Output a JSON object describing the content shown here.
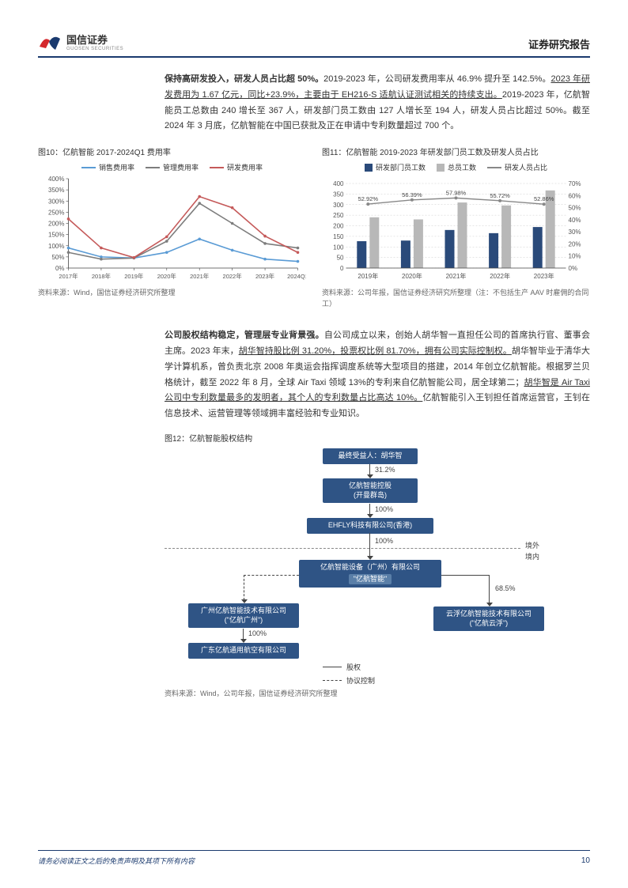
{
  "header": {
    "company": "国信证券",
    "company_en": "GUOSEN SECURITIES",
    "report_title": "证券研究报告",
    "logo_red": "#d4282d",
    "logo_blue": "#1a3a6e"
  },
  "para1": {
    "bold": "保持高研发投入，研发人员占比超 50%。",
    "t1": "2019-2023 年，公司研发费用率从 46.9% 提升至 142.5%。",
    "ul1": "2023 年研发费用为 1.67 亿元，同比+23.9%，主要由于 EH216-S 适航认证测试相关的持续支出。",
    "t2": "2019-2023 年，亿航智能员工总数由 240 增长至 367 人，研发部门员工数由 127 人增长至 194 人，研发人员占比超过 50%。截至 2024 年 3 月底，亿航智能在中国已获批及正在申请中专利数量超过 700 个。"
  },
  "chart10": {
    "title": "图10：亿航智能 2017-2024Q1 费用率",
    "source": "资料来源：Wind，国信证券经济研究所整理",
    "legend": [
      "销售费用率",
      "管理费用率",
      "研发费用率"
    ],
    "colors": [
      "#5a9bd5",
      "#7d7d7d",
      "#c55a5a"
    ],
    "x_labels": [
      "2017年",
      "2018年",
      "2019年",
      "2020年",
      "2021年",
      "2022年",
      "2023年",
      "2024Q1"
    ],
    "y_ticks": [
      0,
      50,
      100,
      150,
      200,
      250,
      300,
      350,
      400
    ],
    "sales": [
      90,
      50,
      45,
      70,
      130,
      80,
      40,
      30
    ],
    "mgmt": [
      70,
      40,
      45,
      120,
      290,
      200,
      110,
      90
    ],
    "rd": [
      220,
      90,
      47,
      140,
      320,
      270,
      143,
      70
    ]
  },
  "chart11": {
    "title": "图11：亿航智能 2019-2023 年研发部门员工数及研发人员占比",
    "source": "资料来源：公司年报，国信证券经济研究所整理（注：不包括生产 AAV 时雇佣的合同工）",
    "legend": [
      "研发部门员工数",
      "总员工数",
      "研发人员占比"
    ],
    "colors": [
      "#2a4a7a",
      "#b8b8b8",
      "#888888"
    ],
    "x_labels": [
      "2019年",
      "2020年",
      "2021年",
      "2022年",
      "2023年"
    ],
    "y1_ticks": [
      0,
      50,
      100,
      150,
      200,
      250,
      300,
      350,
      400
    ],
    "y2_ticks": [
      0,
      10,
      20,
      30,
      40,
      50,
      60,
      70
    ],
    "rd_emp": [
      127,
      130,
      180,
      165,
      194
    ],
    "total_emp": [
      240,
      230,
      310,
      296,
      367
    ],
    "ratio": [
      52.92,
      56.39,
      57.98,
      55.72,
      52.86
    ],
    "ratio_labels": [
      "52.92%",
      "56.39%",
      "57.98%",
      "55.72%",
      "52.86%"
    ]
  },
  "para2": {
    "bold": "公司股权结构稳定，管理层专业背景强。",
    "t1": "自公司成立以来，创始人胡华智一直担任公司的首席执行官、董事会主席。2023 年末，",
    "ul1": "胡华智持股比例 31.20%，投票权比例 81.70%，拥有公司实际控制权。",
    "t2": "胡华智毕业于清华大学计算机系，曾负责北京 2008 年奥运会指挥调度系统等大型项目的搭建，2014 年创立亿航智能。根据罗兰贝格统计，截至 2022 年 8 月，全球 Air Taxi 领域 13%的专利来自亿航智能公司，居全球第二；",
    "ul2": "胡华智是 Air Taxi 公司中专利数量最多的发明者，其个人的专利数量占比高达 10%。",
    "t3": "亿航智能引入王钊担任首席运营官，王钊在信息技术、运营管理等领域拥丰富经验和专业知识。"
  },
  "chart12": {
    "title": "图12：亿航智能股权结构",
    "source": "资料来源：Wind，公司年报，国信证券经济研究所整理",
    "nodes": {
      "owner": "最终受益人：胡华智",
      "holding": "亿航智能控股",
      "holding_sub": "(开曼群岛)",
      "ehfly": "EHFLY科技有限公司(香港)",
      "equip": "亿航智能设备（广州）有限公司",
      "equip_sub": "\"亿航智能\"",
      "gz": "广州亿航智能技术有限公司",
      "gz_sub": "(\"亿航广州\")",
      "gd": "广东亿航通用航空有限公司",
      "yf": "云浮亿航智能技术有限公司",
      "yf_sub": "(\"亿航云浮\")"
    },
    "pcts": {
      "p1": "31.2%",
      "p2": "100%",
      "p3": "100%",
      "p4": "100%",
      "p5": "68.5%"
    },
    "divider": {
      "outside": "境外",
      "inside": "境内"
    },
    "legend": {
      "equity": "股权",
      "control": "协议控制"
    }
  },
  "footer": {
    "text": "请务必阅读正文之后的免责声明及其项下所有内容",
    "page": "10"
  }
}
